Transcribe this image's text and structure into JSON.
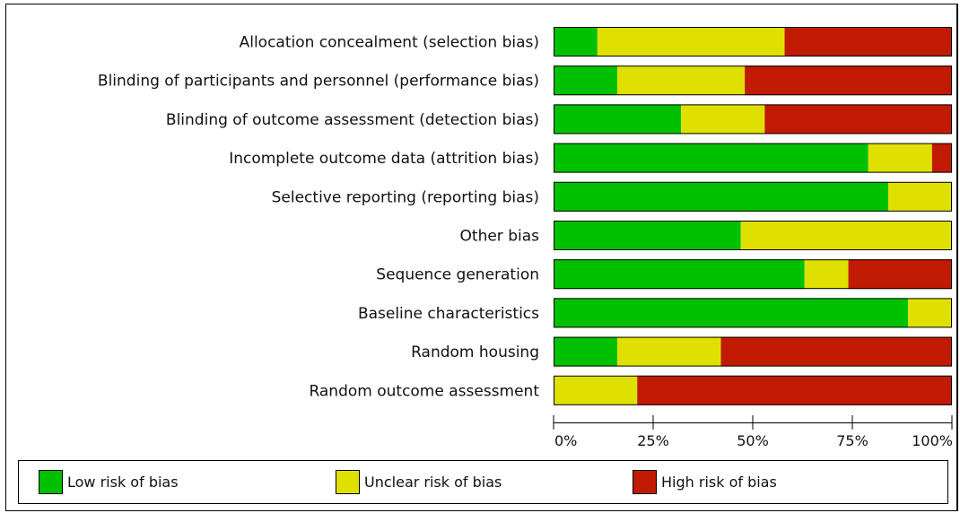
{
  "chart_data": {
    "type": "bar",
    "orientation": "horizontal",
    "stacked": true,
    "categories": [
      "Allocation concealment (selection bias)",
      "Blinding of participants and personnel (performance bias)",
      "Blinding of outcome assessment (detection bias)",
      "Incomplete outcome data (attrition bias)",
      "Selective reporting (reporting bias)",
      "Other bias",
      "Sequence generation",
      "Baseline characteristics",
      "Random housing",
      "Random outcome assessment"
    ],
    "series": [
      {
        "name": "Low risk of bias",
        "color": "#00c000",
        "values": [
          11,
          16,
          32,
          79,
          84,
          47,
          63,
          89,
          16,
          0
        ]
      },
      {
        "name": "Unclear risk of bias",
        "color": "#e0e000",
        "values": [
          47,
          32,
          21,
          16,
          16,
          53,
          11,
          11,
          26,
          21
        ]
      },
      {
        "name": "High risk of bias",
        "color": "#c01a00",
        "values": [
          42,
          52,
          47,
          5,
          0,
          0,
          26,
          0,
          58,
          79
        ]
      }
    ],
    "xlim": [
      0,
      100
    ],
    "xticks": [
      "0%",
      "25%",
      "50%",
      "75%",
      "100%"
    ],
    "legend_position": "bottom",
    "grid": false
  }
}
